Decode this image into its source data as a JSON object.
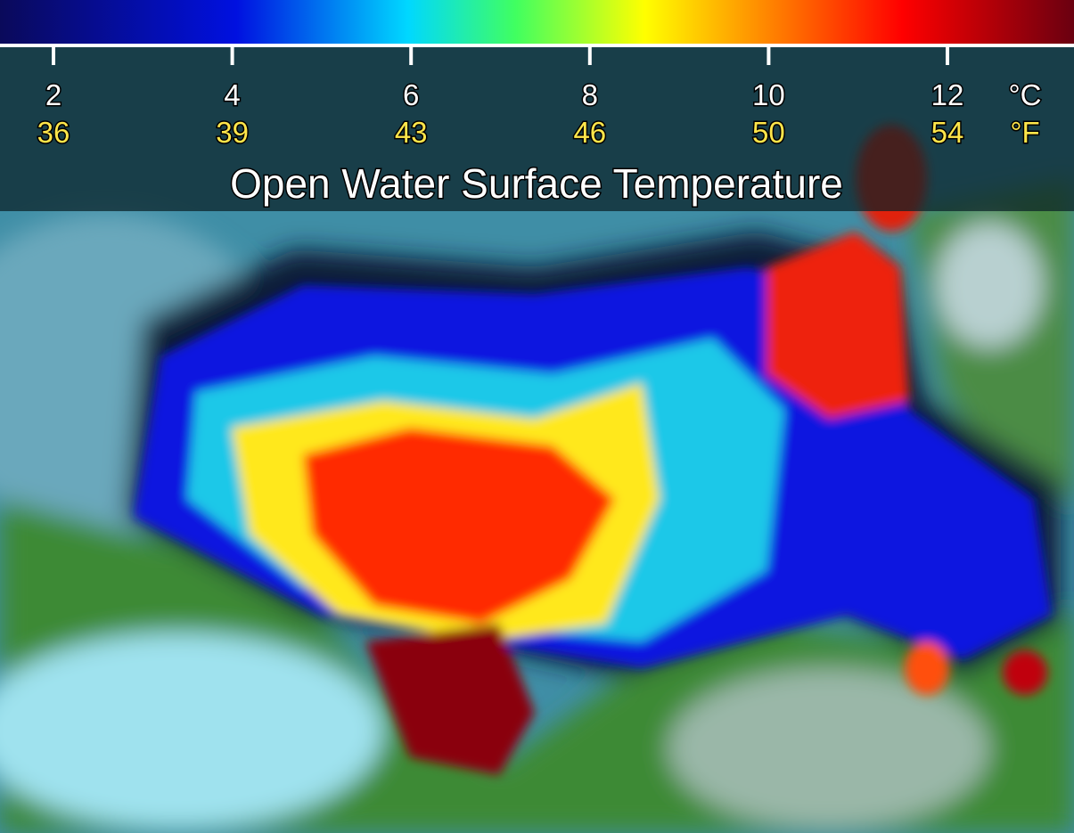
{
  "title": "Open Water Surface Temperature",
  "legend": {
    "celsius_ticks": [
      2,
      4,
      6,
      8,
      10,
      12
    ],
    "fahrenheit_ticks": [
      36,
      39,
      43,
      46,
      50,
      54
    ],
    "celsius_unit": "°C",
    "fahrenheit_unit": "°F"
  }
}
